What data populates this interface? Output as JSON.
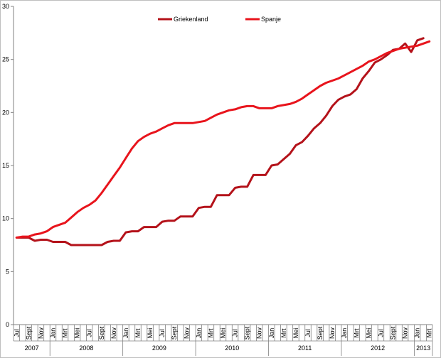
{
  "chart_data": {
    "type": "line",
    "title": "",
    "xlabel": "",
    "ylabel": "",
    "ylim": [
      0,
      30
    ],
    "yticks": [
      0,
      5,
      10,
      15,
      20,
      25,
      30
    ],
    "grid": false,
    "legend_position": "top-center",
    "month_labels": [
      "Jul",
      "",
      "Sept",
      "",
      "Nov",
      "",
      "Jan",
      "",
      "Mrt",
      "",
      "Mei",
      "",
      "Jul",
      "",
      "Sept",
      "",
      "Nov",
      "",
      "Jan",
      "",
      "Mrt",
      "",
      "Mei",
      "",
      "Jul",
      "",
      "Sept",
      "",
      "Nov",
      "",
      "Jan",
      "",
      "Mrt",
      "",
      "Mei",
      "",
      "Jul",
      "",
      "Sept",
      "",
      "Nov",
      "",
      "Jan",
      "",
      "Mrt",
      "",
      "Mei",
      "",
      "Jul",
      "",
      "Sept",
      "",
      "Nov",
      "",
      "Jan",
      "",
      "Mrt",
      "",
      "Mei",
      "",
      "Jul",
      "",
      "Sept",
      "",
      "Nov",
      "",
      "Jan",
      "",
      "Mrt"
    ],
    "years": [
      {
        "label": "2007",
        "start": 0,
        "end": 6
      },
      {
        "label": "2008",
        "start": 6,
        "end": 18
      },
      {
        "label": "2009",
        "start": 18,
        "end": 30
      },
      {
        "label": "2010",
        "start": 30,
        "end": 42
      },
      {
        "label": "2011",
        "start": 42,
        "end": 54
      },
      {
        "label": "2012",
        "start": 54,
        "end": 66
      },
      {
        "label": "2013",
        "start": 66,
        "end": 69
      }
    ],
    "series": [
      {
        "name": "Griekenland",
        "color": "#b4121a",
        "values": [
          8.2,
          8.2,
          8.2,
          7.9,
          8.0,
          8.0,
          7.8,
          7.8,
          7.8,
          7.5,
          7.5,
          7.5,
          7.5,
          7.5,
          7.5,
          7.8,
          7.9,
          7.9,
          8.7,
          8.8,
          8.8,
          9.2,
          9.2,
          9.2,
          9.7,
          9.8,
          9.8,
          10.2,
          10.2,
          10.2,
          11.0,
          11.1,
          11.1,
          12.2,
          12.2,
          12.2,
          12.9,
          13.0,
          13.0,
          14.1,
          14.1,
          14.1,
          15.0,
          15.1,
          15.6,
          16.1,
          16.9,
          17.2,
          17.8,
          18.5,
          19.0,
          19.7,
          20.6,
          21.2,
          21.5,
          21.7,
          22.2,
          23.2,
          23.9,
          24.7,
          25.0,
          25.4,
          25.9,
          26.0,
          26.5,
          25.7,
          26.8,
          27.0
        ]
      },
      {
        "name": "Spanje",
        "color": "#e8141c",
        "values": [
          8.2,
          8.3,
          8.3,
          8.5,
          8.6,
          8.8,
          9.2,
          9.4,
          9.6,
          10.1,
          10.6,
          11.0,
          11.3,
          11.7,
          12.4,
          13.2,
          14.0,
          14.8,
          15.7,
          16.6,
          17.3,
          17.7,
          18.0,
          18.2,
          18.5,
          18.8,
          19.0,
          19.0,
          19.0,
          19.0,
          19.1,
          19.2,
          19.5,
          19.8,
          20.0,
          20.2,
          20.3,
          20.5,
          20.6,
          20.6,
          20.4,
          20.4,
          20.4,
          20.6,
          20.7,
          20.8,
          21.0,
          21.3,
          21.7,
          22.1,
          22.5,
          22.8,
          23.0,
          23.2,
          23.5,
          23.8,
          24.1,
          24.4,
          24.8,
          25.0,
          25.3,
          25.6,
          25.8,
          26.0,
          26.1,
          26.2,
          26.3,
          26.5,
          26.7
        ]
      }
    ]
  }
}
